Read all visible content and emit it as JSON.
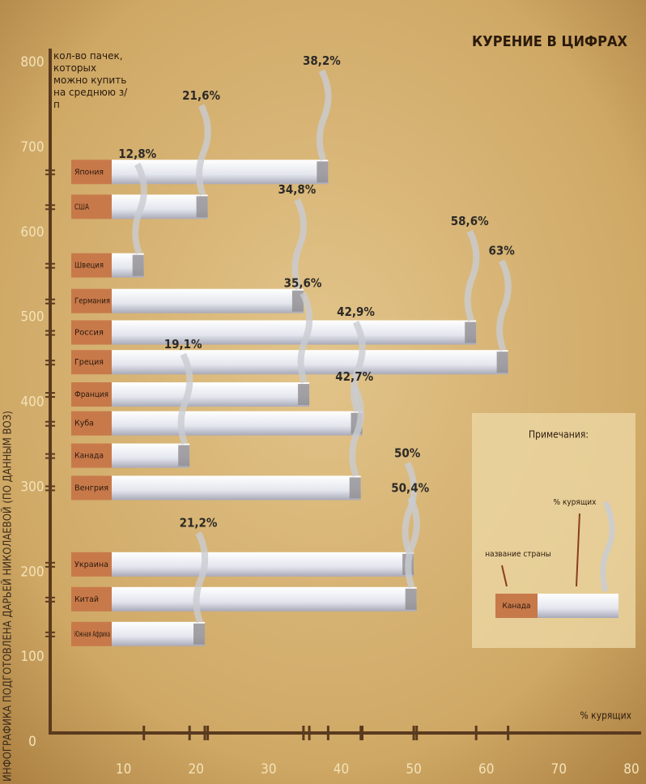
{
  "credit": "ИНФОГРАФИКА ПОДГОТОВЛЕНА ДАРЬЕЙ НИКОЛАЕВОЙ (ПО ДАННЫМ ВОЗ)",
  "chart_data": {
    "type": "cigarette",
    "title": "КУРЕНИЕ В ЦИФРАХ",
    "y_label": "кол-во пачек, которых можно купить на среднюю з/п",
    "x_label": "% курящих",
    "categories": [
      "Япония",
      "США",
      "Швеция",
      "Германия",
      "Россия",
      "Греция",
      "Франция",
      "Куба",
      "Канада",
      "Венгрия",
      "Украина",
      "Китай",
      "Южная Африка"
    ],
    "x": [
      38.2,
      21.6,
      12.8,
      34.8,
      58.6,
      63,
      35.6,
      42.9,
      19.1,
      42.7,
      50,
      50.4,
      21.2
    ],
    "x_labels": [
      "38,2%",
      "21,6%",
      "12,8%",
      "34,8%",
      "58,6%",
      "63%",
      "35,6%",
      "42,9%",
      "19,1%",
      "42,7%",
      "50%",
      "50,4%",
      "21,2%"
    ],
    "values": [
      671,
      630,
      561,
      519,
      482,
      447,
      409,
      375,
      337,
      299,
      209,
      168,
      127
    ],
    "xlim": [
      0,
      80
    ],
    "xticks": [
      10,
      20,
      30,
      40,
      50,
      60,
      70,
      80
    ],
    "ylim": [
      0,
      800
    ],
    "yticks": [
      0,
      100,
      200,
      300,
      400,
      500,
      600,
      700,
      800
    ],
    "legend": {
      "title": "Примечания:",
      "country_label": "название страны",
      "percent_label": "% курящих",
      "sample": "Канада"
    }
  }
}
